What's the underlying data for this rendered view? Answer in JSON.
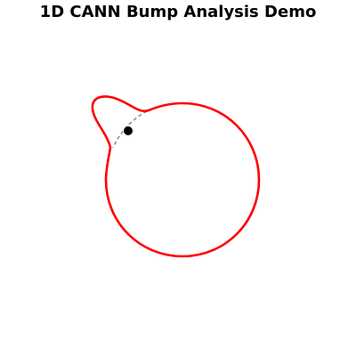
{
  "title": "1D CANN Bump Analysis Demo",
  "colors": {
    "activity_curve": "#ff0000",
    "reference_arc": "#808080",
    "bump_marker": "#000000"
  }
}
